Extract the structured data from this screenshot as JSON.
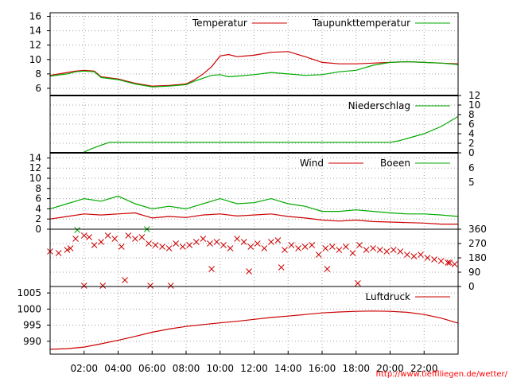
{
  "credit_url": "http://www.tiefflliegen.de/wetter/",
  "chart_data": [
    {
      "type": "line",
      "panel": "temperature",
      "yticks": [
        6,
        8,
        10,
        12,
        14,
        16
      ],
      "ylim": [
        5,
        16.5
      ],
      "grid": true,
      "legend": "top-right",
      "x_hours": [
        0,
        1,
        1.5,
        2,
        2.6,
        3,
        4,
        4.5,
        5,
        6,
        7,
        8,
        8.5,
        9,
        9.5,
        10,
        10.5,
        11,
        12,
        13,
        14,
        15,
        16,
        17,
        18,
        19,
        20,
        21,
        22,
        23,
        24
      ],
      "series": [
        {
          "name": "Temperatur",
          "color": "#cc0000",
          "values": [
            7.8,
            8.2,
            8.4,
            8.5,
            8.4,
            7.6,
            7.3,
            7.0,
            6.7,
            6.3,
            6.4,
            6.6,
            7.2,
            8.0,
            9.0,
            10.5,
            10.7,
            10.4,
            10.6,
            11.0,
            11.1,
            10.4,
            9.6,
            9.4,
            9.4,
            9.5,
            9.6,
            9.7,
            9.6,
            9.5,
            9.4
          ]
        },
        {
          "name": "Taupunkttemperatur",
          "color": "#00aa00",
          "values": [
            7.7,
            8.0,
            8.3,
            8.4,
            8.3,
            7.5,
            7.2,
            6.9,
            6.6,
            6.2,
            6.3,
            6.5,
            7.0,
            7.4,
            7.8,
            7.9,
            7.6,
            7.7,
            7.9,
            8.2,
            8.0,
            7.8,
            7.9,
            8.3,
            8.5,
            9.2,
            9.6,
            9.7,
            9.6,
            9.5,
            9.3
          ]
        }
      ]
    },
    {
      "type": "line",
      "panel": "precipitation",
      "yticks": [
        0,
        2,
        4,
        6,
        8,
        10,
        12
      ],
      "ylim": [
        0,
        12
      ],
      "y_axis": "right",
      "legend": "top-right",
      "x_hours": [
        0,
        1.9,
        2.4,
        3,
        3.5,
        20,
        20.5,
        21,
        22,
        23,
        24
      ],
      "series": [
        {
          "name": "Niederschlag",
          "color": "#00aa00",
          "values": [
            0,
            0,
            0.8,
            1.6,
            2.2,
            2.2,
            2.5,
            3.0,
            4.0,
            5.5,
            7.6
          ]
        }
      ]
    },
    {
      "type": "line",
      "panel": "wind",
      "yticks": [
        0,
        2,
        4,
        6,
        8,
        10,
        12,
        14
      ],
      "ylim": [
        0,
        15
      ],
      "yticks_right_labels": [
        "5",
        "6"
      ],
      "legend": "top-right",
      "x_hours": [
        0,
        1,
        2,
        3,
        4,
        5,
        6,
        7,
        8,
        9,
        10,
        11,
        12,
        13,
        14,
        15,
        16,
        17,
        18,
        19,
        20,
        21,
        22,
        23,
        24
      ],
      "series": [
        {
          "name": "Wind",
          "color": "#cc0000",
          "values": [
            2.0,
            2.5,
            3.0,
            2.8,
            3.0,
            3.2,
            2.2,
            2.5,
            2.3,
            2.8,
            3.0,
            2.6,
            2.8,
            3.0,
            2.5,
            2.2,
            1.8,
            1.6,
            1.8,
            1.5,
            1.4,
            1.3,
            1.2,
            1.0,
            1.0
          ]
        },
        {
          "name": "Boeen",
          "color": "#00aa00",
          "values": [
            4.0,
            5.0,
            6.0,
            5.5,
            6.5,
            5.0,
            4.0,
            4.5,
            4.0,
            5.0,
            6.0,
            5.0,
            5.2,
            6.0,
            5.0,
            4.5,
            3.5,
            3.5,
            3.8,
            3.5,
            3.2,
            3.0,
            3.0,
            2.8,
            2.5
          ]
        }
      ]
    },
    {
      "type": "scatter",
      "panel": "wind_direction",
      "yticks": [
        0,
        90,
        180,
        270,
        360
      ],
      "ylim": [
        0,
        360
      ],
      "y_axis": "right",
      "series": [
        {
          "name": "",
          "color": "#cc0000",
          "x_hours": [
            0,
            0.5,
            1,
            1.2,
            1.5,
            2,
            2.3,
            2.6,
            3,
            3.4,
            3.8,
            4.2,
            4.6,
            5,
            5.4,
            5.8,
            6.2,
            6.6,
            7,
            7.4,
            7.8,
            8.2,
            8.6,
            9,
            9.4,
            9.8,
            10.2,
            10.6,
            11,
            11.4,
            11.8,
            12.2,
            12.6,
            13,
            13.4,
            13.8,
            14.2,
            14.6,
            15,
            15.4,
            15.8,
            16.2,
            16.6,
            17,
            17.4,
            17.8,
            18.2,
            18.6,
            19,
            19.4,
            19.8,
            20.2,
            20.6,
            21,
            21.4,
            21.8,
            22.2,
            22.6,
            23,
            23.4,
            23.8,
            2,
            3.1,
            4.4,
            5.9,
            7.1,
            9.5,
            11.7,
            13.6,
            16.3,
            18.1,
            23.5
          ],
          "values": [
            220,
            210,
            230,
            240,
            300,
            320,
            310,
            260,
            280,
            320,
            300,
            250,
            320,
            300,
            310,
            270,
            260,
            250,
            240,
            270,
            250,
            260,
            280,
            300,
            270,
            280,
            260,
            240,
            300,
            280,
            250,
            270,
            240,
            280,
            290,
            230,
            260,
            240,
            250,
            260,
            200,
            240,
            250,
            230,
            250,
            210,
            260,
            230,
            240,
            230,
            220,
            230,
            220,
            200,
            190,
            200,
            180,
            170,
            160,
            150,
            140,
            5,
            5,
            40,
            5,
            5,
            110,
            95,
            120,
            110,
            20,
            150
          ]
        },
        {
          "name": "",
          "color": "#00aa00",
          "x_hours": [
            1.6,
            5.7
          ],
          "values": [
            355,
            360
          ]
        }
      ]
    },
    {
      "type": "line",
      "panel": "pressure",
      "yticks": [
        990,
        995,
        1000,
        1005
      ],
      "ylim": [
        986,
        1007
      ],
      "legend": "top-right",
      "x_hours": [
        0,
        1,
        2,
        3,
        4,
        5,
        6,
        7,
        8,
        9,
        10,
        11,
        12,
        13,
        14,
        15,
        16,
        17,
        18,
        19,
        20,
        21,
        22,
        23,
        24
      ],
      "series": [
        {
          "name": "Luftdruck",
          "color": "#cc0000",
          "values": [
            987.5,
            987.7,
            988.2,
            989.2,
            990.3,
            991.5,
            992.8,
            993.8,
            994.6,
            995.2,
            995.7,
            996.2,
            996.8,
            997.4,
            997.8,
            998.3,
            998.8,
            999.1,
            999.3,
            999.4,
            999.3,
            999.0,
            998.3,
            997.2,
            995.6
          ]
        }
      ]
    }
  ],
  "x_tick_labels": [
    "02:00",
    "04:00",
    "06:00",
    "08:00",
    "10:00",
    "12:00",
    "14:00",
    "16:00",
    "18:00",
    "20:00",
    "22:00"
  ]
}
